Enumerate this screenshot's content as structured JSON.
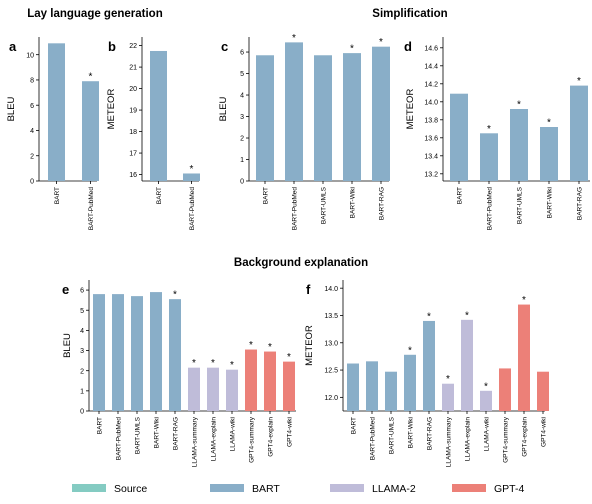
{
  "sections": {
    "lay": "Lay language generation",
    "simp": "Simplification",
    "bg": "Background explanation"
  },
  "colors": {
    "Source": "#84cbc2",
    "BART": "#89aec8",
    "LLAMA-2": "#bfbcd9",
    "GPT-4": "#ec8078"
  },
  "legend": [
    {
      "label": "Source",
      "color": "#84cbc2"
    },
    {
      "label": "BART",
      "color": "#89aec8"
    },
    {
      "label": "LLAMA-2",
      "color": "#bfbcd9"
    },
    {
      "label": "GPT-4",
      "color": "#ec8078"
    }
  ],
  "chart_data": [
    {
      "panel": "a",
      "type": "bar",
      "ylabel": "BLEU",
      "ylim": [
        0,
        11.4
      ],
      "yticks": [
        0,
        2,
        4,
        6,
        8,
        10
      ],
      "categories": [
        "BART",
        "BART-PubMed"
      ],
      "values": [
        10.9,
        7.9
      ],
      "groups": [
        "BART",
        "BART"
      ],
      "significant": [
        false,
        true
      ]
    },
    {
      "panel": "b",
      "type": "bar",
      "ylabel": "METEOR",
      "ylim": [
        15.7,
        22.4
      ],
      "yticks": [
        16,
        17,
        18,
        19,
        20,
        21,
        22
      ],
      "categories": [
        "BART",
        "BART-PubMed"
      ],
      "values": [
        21.75,
        16.05
      ],
      "groups": [
        "BART",
        "BART"
      ],
      "significant": [
        false,
        true
      ]
    },
    {
      "panel": "c",
      "type": "bar",
      "ylabel": "BLEU",
      "ylim": [
        0,
        6.7
      ],
      "yticks": [
        0,
        1,
        2,
        3,
        4,
        5,
        6
      ],
      "categories": [
        "BART",
        "BART-PubMed",
        "BART-UMLS",
        "BART-Wiki",
        "BART-RAG"
      ],
      "values": [
        5.85,
        6.45,
        5.85,
        5.95,
        6.25
      ],
      "groups": [
        "BART",
        "BART",
        "BART",
        "BART",
        "BART"
      ],
      "significant": [
        false,
        true,
        false,
        true,
        true
      ]
    },
    {
      "panel": "d",
      "type": "bar",
      "ylabel": "METEOR",
      "ylim": [
        13.12,
        14.72
      ],
      "yticks": [
        13.2,
        13.4,
        13.6,
        13.8,
        14.0,
        14.2,
        14.4,
        14.6
      ],
      "categories": [
        "BART",
        "BART-PubMed",
        "BART-UMLS",
        "BART-Wiki",
        "BART-RAG"
      ],
      "values": [
        14.09,
        13.65,
        13.92,
        13.72,
        14.18
      ],
      "groups": [
        "BART",
        "BART",
        "BART",
        "BART",
        "BART"
      ],
      "significant": [
        false,
        true,
        true,
        true,
        true
      ]
    },
    {
      "panel": "e",
      "type": "bar",
      "ylabel": "BLEU",
      "ylim": [
        0,
        6.5
      ],
      "yticks": [
        0,
        1,
        2,
        3,
        4,
        5,
        6
      ],
      "categories": [
        "BART",
        "BART-PubMed",
        "BART-UMLS",
        "BART-Wiki",
        "BART-RAG",
        "LLAMA-summary",
        "LLAMA-explain",
        "LLAMA-wiki",
        "GPT4-summary",
        "GPT4-explain",
        "GPT4-wiki"
      ],
      "values": [
        5.8,
        5.8,
        5.7,
        5.9,
        5.55,
        2.15,
        2.15,
        2.05,
        3.05,
        2.95,
        2.45
      ],
      "groups": [
        "BART",
        "BART",
        "BART",
        "BART",
        "BART",
        "LLAMA-2",
        "LLAMA-2",
        "LLAMA-2",
        "GPT-4",
        "GPT-4",
        "GPT-4"
      ],
      "significant": [
        false,
        false,
        false,
        false,
        true,
        true,
        true,
        true,
        true,
        true,
        true
      ]
    },
    {
      "panel": "f",
      "type": "bar",
      "ylabel": "METEOR",
      "ylim": [
        11.75,
        14.15
      ],
      "yticks": [
        12.0,
        12.5,
        13.0,
        13.5,
        14.0
      ],
      "categories": [
        "BART",
        "BART-PubMed",
        "BART-UMLS",
        "BART-Wiki",
        "BART-RAG",
        "LLAMA-summary",
        "LLAMA-explain",
        "LLAMA-wiki",
        "GPT4-summary",
        "GPT4-explain",
        "GPT4-wiki"
      ],
      "values": [
        12.62,
        12.66,
        12.47,
        12.78,
        13.4,
        12.25,
        13.42,
        12.12,
        12.53,
        13.7,
        12.47
      ],
      "groups": [
        "BART",
        "BART",
        "BART",
        "BART",
        "BART",
        "LLAMA-2",
        "LLAMA-2",
        "LLAMA-2",
        "GPT-4",
        "GPT-4",
        "GPT-4"
      ],
      "significant": [
        false,
        false,
        false,
        true,
        true,
        true,
        true,
        true,
        false,
        true,
        false
      ]
    }
  ]
}
